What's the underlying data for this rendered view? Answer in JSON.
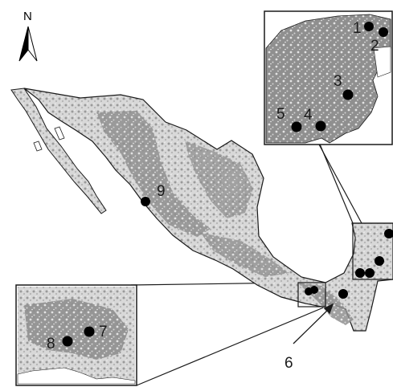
{
  "north_arrow": {
    "letter": "N"
  },
  "site_labels": [
    "1",
    "2",
    "3",
    "4",
    "5",
    "6",
    "7",
    "8",
    "9"
  ],
  "colors": {
    "land": "#8c8c8c",
    "land_light": "#d6d6d6",
    "point": "#000000",
    "outline": "#1a1a1a",
    "background": "#ffffff"
  }
}
